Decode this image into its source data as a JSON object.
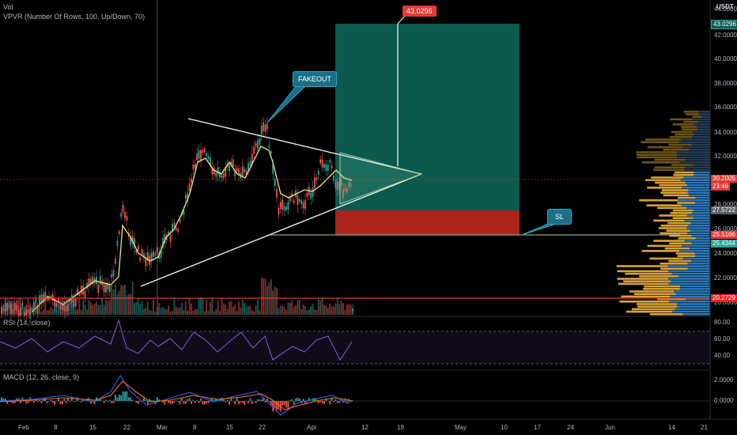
{
  "indicators": {
    "vol": "Vol",
    "vpvr": "VPVR (Number Of Rows, 100, Up/Down, 70)",
    "rsi": "RSI (14, close)",
    "macd": "MACD (12, 26, close, 9)"
  },
  "currency": "USDT",
  "price_axis": [
    "44.0000",
    "42.0000",
    "40.0000",
    "38.0000",
    "36.0000",
    "34.0000",
    "32.0000",
    "30.0000",
    "28.0000",
    "26.0000",
    "24.0000",
    "22.0000",
    "20.0000"
  ],
  "price_tags": {
    "target": "43.0296",
    "current": "30.2005",
    "countdown": "23:46",
    "mid": "27.5722",
    "sl_upper": "25.5166",
    "sl_lower": "25.4344",
    "support": "20.2729"
  },
  "rsi_axis": [
    "80.00",
    "60.00",
    "40.00"
  ],
  "macd_axis": [
    "2.0000",
    "0.0000"
  ],
  "time_axis": [
    "Feb",
    "8",
    "15",
    "22",
    "Mar",
    "8",
    "15",
    "22",
    "Apr",
    "12",
    "19",
    "May",
    "10",
    "17",
    "24",
    "Jun",
    "14",
    "21"
  ],
  "annotations": {
    "fakeout": "FAKEOUT",
    "sl": "SL",
    "target": "43.0296"
  },
  "colors": {
    "profit_zone": "#0d5e52",
    "loss_zone": "#b3261e",
    "up_candle": "#26a69a",
    "down_candle": "#ef5350",
    "ma": "#f2e27a",
    "rsi": "#7e57c2",
    "support": "#ff2020",
    "sl_line": "#9ed49a"
  }
}
